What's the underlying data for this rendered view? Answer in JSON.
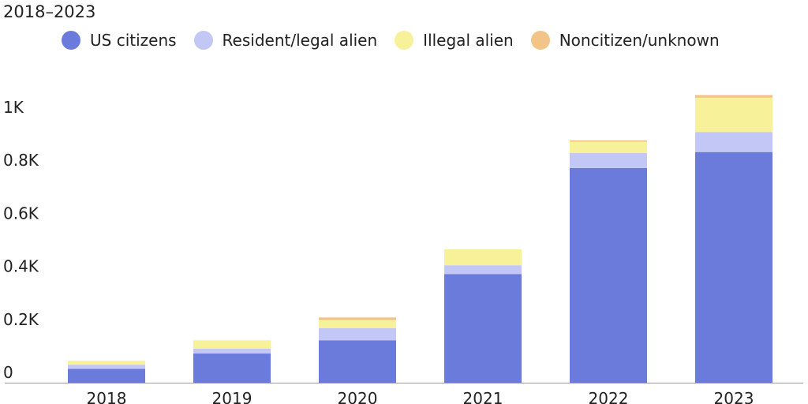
{
  "subtitle": "2018–2023",
  "chart_data": {
    "type": "bar",
    "stacked": true,
    "title": "",
    "subtitle": "2018–2023",
    "xlabel": "",
    "ylabel": "",
    "categories": [
      "2018",
      "2019",
      "2020",
      "2021",
      "2022",
      "2023"
    ],
    "series": [
      {
        "name": "US citizens",
        "color": "#6b7bdc",
        "values": [
          52,
          110,
          160,
          410,
          810,
          870
        ]
      },
      {
        "name": "Resident/legal alien",
        "color": "#c3c7f5",
        "values": [
          16,
          18,
          46,
          33,
          56,
          75
        ]
      },
      {
        "name": "Illegal alien",
        "color": "#f7f19a",
        "values": [
          15,
          32,
          30,
          60,
          43,
          130
        ]
      },
      {
        "name": "Noncitizen/unknown",
        "color": "#f2c487",
        "values": [
          0,
          0,
          10,
          0,
          5,
          10
        ]
      }
    ],
    "y_ticks": [
      {
        "value": 0,
        "label": "0"
      },
      {
        "value": 200,
        "label": "0.2K"
      },
      {
        "value": 400,
        "label": "0.4K"
      },
      {
        "value": 600,
        "label": "0.6K"
      },
      {
        "value": 800,
        "label": "0.8K"
      },
      {
        "value": 1000,
        "label": "1K"
      }
    ],
    "ylim": [
      0,
      1050
    ],
    "grid": false,
    "legend_position": "top"
  }
}
